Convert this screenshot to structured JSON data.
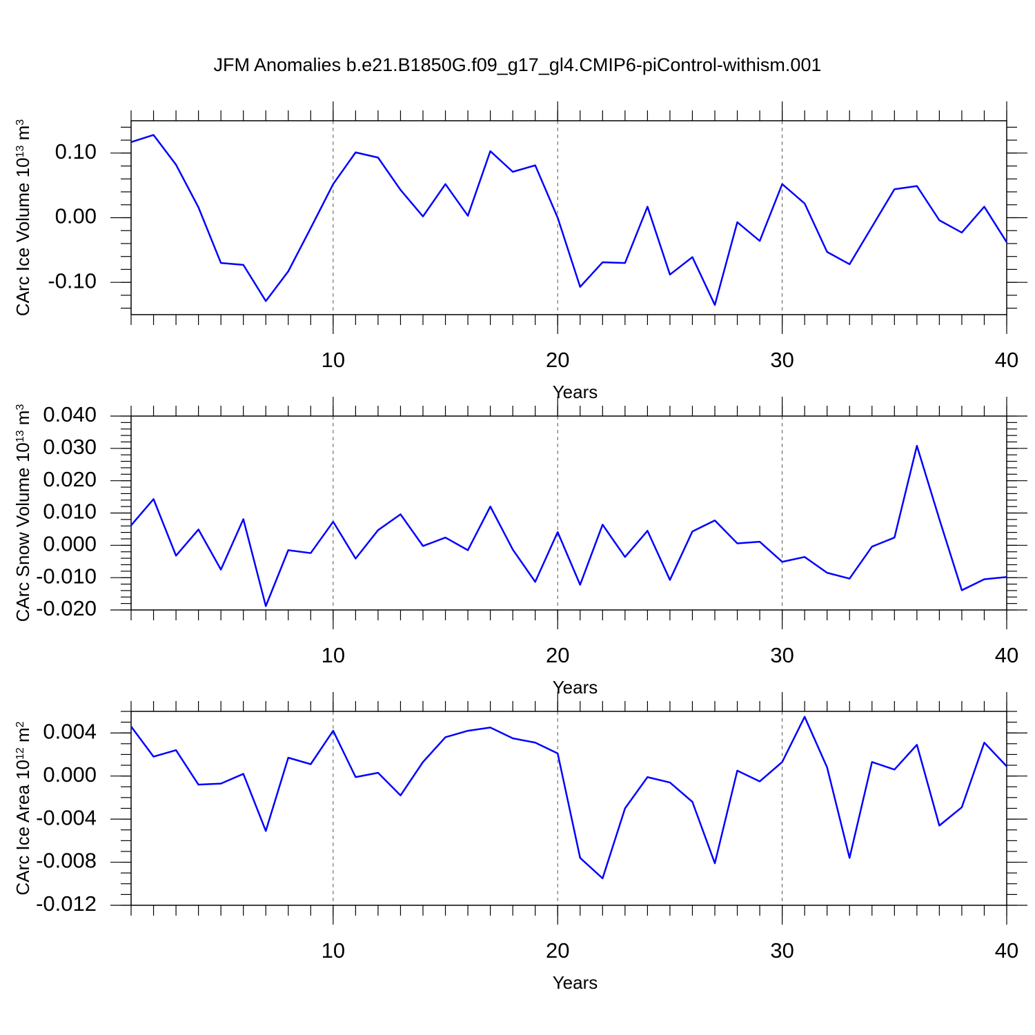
{
  "title": "JFM Anomalies b.e21.B1850G.f09_g17_gl4.CMIP6-piControl-withism.001",
  "chart_data": [
    {
      "type": "line",
      "ylabel": [
        "CArc Ice Volume 10",
        "13",
        " m",
        "3"
      ],
      "xlabel": "Years",
      "x": [
        1,
        2,
        3,
        4,
        5,
        6,
        7,
        8,
        9,
        10,
        11,
        12,
        13,
        14,
        15,
        16,
        17,
        18,
        19,
        20,
        21,
        22,
        23,
        24,
        25,
        26,
        27,
        28,
        29,
        30,
        31,
        32,
        33,
        34,
        35,
        36,
        37,
        38,
        39,
        40
      ],
      "values": [
        0.117,
        0.128,
        0.082,
        0.016,
        -0.07,
        -0.073,
        -0.129,
        -0.083,
        -0.016,
        0.052,
        0.101,
        0.093,
        0.043,
        0.002,
        0.052,
        0.003,
        0.103,
        0.071,
        0.081,
        0.0,
        -0.107,
        -0.069,
        -0.07,
        0.017,
        -0.088,
        -0.061,
        -0.135,
        -0.007,
        -0.036,
        0.052,
        0.022,
        -0.053,
        -0.072,
        -0.014,
        0.044,
        0.049,
        -0.004,
        -0.023,
        0.017,
        -0.038
      ],
      "color": "#0000ff",
      "xlim": [
        1,
        40
      ],
      "xticks": [
        10,
        20,
        30,
        40
      ],
      "ylim": [
        -0.15,
        0.15
      ],
      "yticks": [
        {
          "value": -0.1,
          "label": "-0.10"
        },
        {
          "value": 0,
          "label": "0.00"
        },
        {
          "value": 0.1,
          "label": "0.10"
        }
      ],
      "grid": "x"
    },
    {
      "type": "line",
      "ylabel": [
        "CArc Snow Volume 10",
        "13",
        " m",
        "3"
      ],
      "xlabel": "Years",
      "x": [
        1,
        2,
        3,
        4,
        5,
        6,
        7,
        8,
        9,
        10,
        11,
        12,
        13,
        14,
        15,
        16,
        17,
        18,
        19,
        20,
        21,
        22,
        23,
        24,
        25,
        26,
        27,
        28,
        29,
        30,
        31,
        32,
        33,
        34,
        35,
        36,
        37,
        38,
        39,
        40
      ],
      "values": [
        0.0062,
        0.0143,
        -0.0032,
        0.0049,
        -0.0075,
        0.0081,
        -0.0188,
        -0.0015,
        -0.0024,
        0.0073,
        -0.0041,
        0.0047,
        0.0096,
        -0.0002,
        0.0024,
        -0.0015,
        0.012,
        -0.0013,
        -0.0113,
        0.0041,
        -0.0122,
        0.0064,
        -0.0036,
        0.0045,
        -0.0107,
        0.0043,
        0.0077,
        0.0006,
        0.0011,
        -0.0051,
        -0.0036,
        -0.0085,
        -0.0103,
        -0.0004,
        0.0024,
        0.0308,
        0.0081,
        -0.0139,
        -0.0105,
        -0.0098
      ],
      "color": "#0000ff",
      "xlim": [
        1,
        40
      ],
      "xticks": [
        10,
        20,
        30,
        40
      ],
      "ylim": [
        -0.02,
        0.04
      ],
      "yticks": [
        {
          "value": -0.02,
          "label": "-0.020"
        },
        {
          "value": -0.01,
          "label": "-0.010"
        },
        {
          "value": 0,
          "label": "0.000"
        },
        {
          "value": 0.01,
          "label": "0.010"
        },
        {
          "value": 0.02,
          "label": "0.020"
        },
        {
          "value": 0.03,
          "label": "0.030"
        },
        {
          "value": 0.04,
          "label": "0.040"
        }
      ],
      "grid": "x"
    },
    {
      "type": "line",
      "ylabel": [
        "CArc Ice Area 10",
        "12",
        " m",
        "2"
      ],
      "xlabel": "Years",
      "x": [
        1,
        2,
        3,
        4,
        5,
        6,
        7,
        8,
        9,
        10,
        11,
        12,
        13,
        14,
        15,
        16,
        17,
        18,
        19,
        20,
        21,
        22,
        23,
        24,
        25,
        26,
        27,
        28,
        29,
        30,
        31,
        32,
        33,
        34,
        35,
        36,
        37,
        38,
        39,
        40
      ],
      "values": [
        0.0046,
        0.0018,
        0.0024,
        -0.0008,
        -0.0007,
        0.0002,
        -0.0051,
        0.0017,
        0.0011,
        0.0042,
        -0.0001,
        0.0003,
        -0.0018,
        0.0013,
        0.0036,
        0.0042,
        0.0045,
        0.0035,
        0.0031,
        0.0021,
        -0.0076,
        -0.0095,
        -0.003,
        -0.0001,
        -0.0006,
        -0.0024,
        -0.0081,
        0.0005,
        -0.0005,
        0.0013,
        0.0055,
        0.0008,
        -0.0076,
        0.0013,
        0.0006,
        0.0029,
        -0.0046,
        -0.0029,
        0.0031,
        0.0009
      ],
      "color": "#0000ff",
      "xlim": [
        1,
        40
      ],
      "xticks": [
        10,
        20,
        30,
        40
      ],
      "ylim": [
        -0.012,
        0.006
      ],
      "yticks": [
        {
          "value": -0.012,
          "label": "-0.012"
        },
        {
          "value": -0.008,
          "label": "-0.008"
        },
        {
          "value": -0.004,
          "label": "-0.004"
        },
        {
          "value": 0,
          "label": "0.000"
        },
        {
          "value": 0.004,
          "label": "0.004"
        }
      ],
      "grid": "x"
    }
  ]
}
